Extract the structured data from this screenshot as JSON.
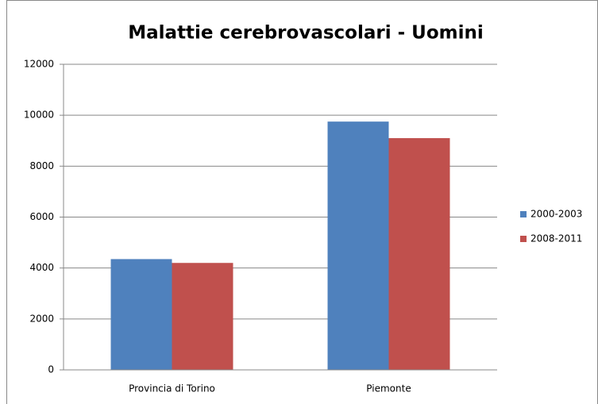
{
  "chart_data": {
    "type": "bar",
    "title": "Malattie cerebrovascolari - Uomini",
    "categories": [
      "Provincia di Torino",
      "Piemonte"
    ],
    "series": [
      {
        "name": "2000-2003",
        "color": "#4f81bd",
        "values": [
          4350,
          9750
        ]
      },
      {
        "name": "2008-2011",
        "color": "#c0504d",
        "values": [
          4200,
          9100
        ]
      }
    ],
    "ylim": [
      0,
      12000
    ],
    "yticks": [
      0,
      2000,
      4000,
      6000,
      8000,
      10000,
      12000
    ],
    "grid": true,
    "legend": "right"
  }
}
